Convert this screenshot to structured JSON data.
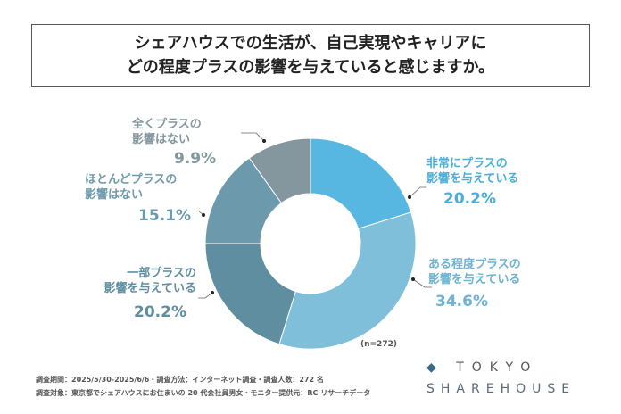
{
  "title": {
    "line1": "シェアハウスでの生活が、自己実現やキャリアに",
    "line2": "どの程度プラスの影響を与えていると感じますか。"
  },
  "chart_data": {
    "type": "pie",
    "donut": true,
    "title": "シェアハウスでの生活が、自己実現やキャリアにどの程度プラスの影響を与えていると感じますか。",
    "note": "(n=272)",
    "slices": [
      {
        "label": "非常にプラスの影響を与えている",
        "line1": "非常にプラスの",
        "line2": "影響を与えている",
        "value": 20.2,
        "display": "20.2%",
        "color": "#58b7e0"
      },
      {
        "label": "ある程度プラスの影響を与えている",
        "line1": "ある程度プラスの",
        "line2": "影響を与えている",
        "value": 34.6,
        "display": "34.6%",
        "color": "#80bfd9"
      },
      {
        "label": "一部プラスの影響を与えている",
        "line1": "一部プラスの",
        "line2": "影響を与えている",
        "value": 20.2,
        "display": "20.2%",
        "color": "#5e8ea0"
      },
      {
        "label": "ほとんどプラスの影響はない",
        "line1": "ほとんどプラスの",
        "line2": "影響はない",
        "value": 15.1,
        "display": "15.1%",
        "color": "#6c99ab"
      },
      {
        "label": "全くプラスの影響はない",
        "line1": "全くプラスの",
        "line2": "影響はない",
        "value": 9.9,
        "display": "9.9%",
        "color": "#84979f"
      }
    ]
  },
  "footer": {
    "line1": "調査期間：2025/5/30-2025/6/6・調査方法：インターネット調査・調査人数：272 名",
    "line2": "調査対象：東京都でシェアハウスにお住まいの 20 代会社員男女・モニター提供元：RC リサーチデータ"
  },
  "logo": {
    "line1": "TOKYO",
    "line2": "SHAREHOUSE"
  }
}
